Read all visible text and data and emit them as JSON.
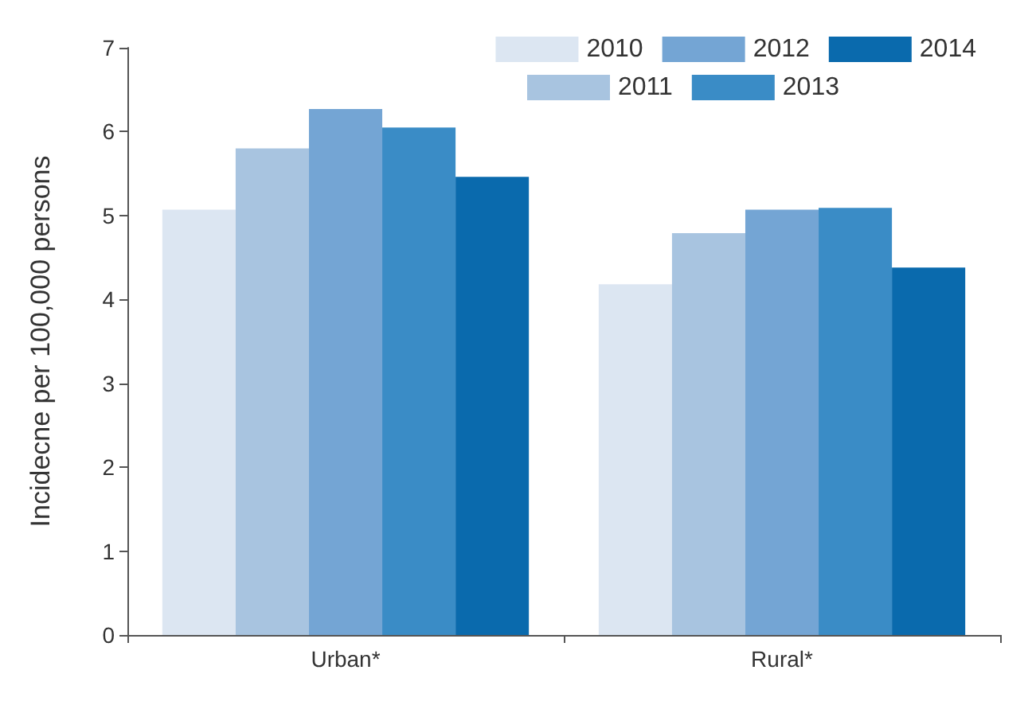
{
  "chart_data": {
    "type": "bar",
    "ylabel": "Incidecne per 100,000 persons",
    "categories": [
      "Urban*",
      "Rural*"
    ],
    "series": [
      {
        "name": "2010",
        "color": "#dce6f2",
        "values": [
          5.07,
          4.18
        ]
      },
      {
        "name": "2011",
        "color": "#a8c4e0",
        "values": [
          5.8,
          4.79
        ]
      },
      {
        "name": "2012",
        "color": "#74a5d4",
        "values": [
          6.27,
          5.07
        ]
      },
      {
        "name": "2013",
        "color": "#3a8cc6",
        "values": [
          6.05,
          5.09
        ]
      },
      {
        "name": "2014",
        "color": "#0a6aad",
        "values": [
          5.46,
          4.38
        ]
      }
    ],
    "ylim": [
      0,
      7
    ],
    "yticks": [
      0,
      1,
      2,
      3,
      4,
      5,
      6,
      7
    ],
    "grid": false,
    "legend": "top right"
  }
}
